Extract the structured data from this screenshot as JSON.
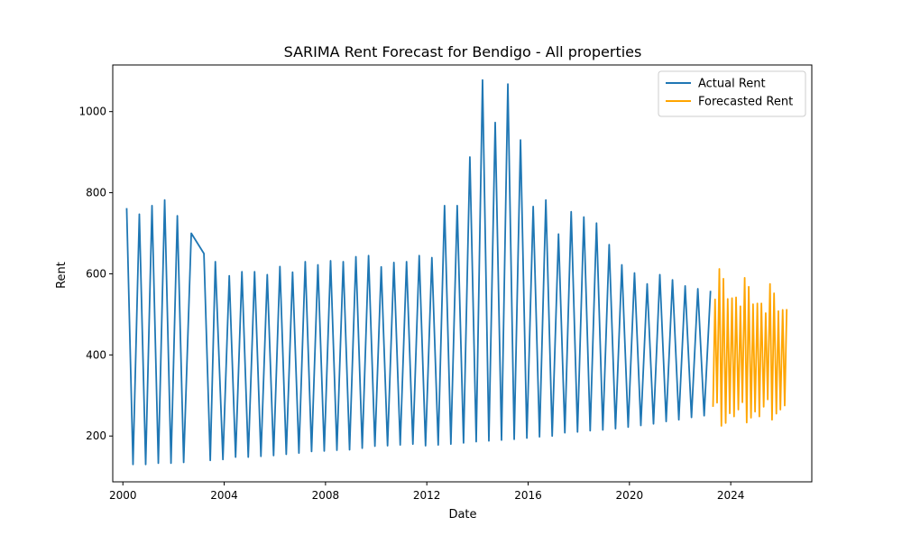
{
  "chart_data": {
    "type": "line",
    "title": "SARIMA Rent Forecast for Bendigo - All properties",
    "xlabel": "Date",
    "ylabel": "Rent",
    "xlim": [
      1999.6,
      2027.2
    ],
    "ylim": [
      87,
      1115
    ],
    "x_ticks": [
      2000,
      2004,
      2008,
      2012,
      2016,
      2020,
      2024
    ],
    "y_ticks": [
      200,
      400,
      600,
      800,
      1000
    ],
    "legend_position": "top-right",
    "grid": false,
    "series": [
      {
        "name": "Actual Rent",
        "color": "#1f77b4",
        "points": [
          [
            2000.15,
            762
          ],
          [
            2000.4,
            130
          ],
          [
            2000.65,
            747
          ],
          [
            2000.9,
            130
          ],
          [
            2001.15,
            768
          ],
          [
            2001.4,
            133
          ],
          [
            2001.65,
            782
          ],
          [
            2001.9,
            133
          ],
          [
            2002.15,
            743
          ],
          [
            2002.4,
            135
          ],
          [
            2002.7,
            700
          ],
          [
            2003.2,
            650
          ],
          [
            2003.45,
            140
          ],
          [
            2003.65,
            630
          ],
          [
            2003.95,
            142
          ],
          [
            2004.2,
            595
          ],
          [
            2004.45,
            148
          ],
          [
            2004.7,
            605
          ],
          [
            2004.95,
            148
          ],
          [
            2005.2,
            605
          ],
          [
            2005.45,
            150
          ],
          [
            2005.7,
            598
          ],
          [
            2005.95,
            152
          ],
          [
            2006.2,
            618
          ],
          [
            2006.45,
            155
          ],
          [
            2006.7,
            604
          ],
          [
            2006.95,
            158
          ],
          [
            2007.2,
            630
          ],
          [
            2007.45,
            162
          ],
          [
            2007.7,
            622
          ],
          [
            2007.95,
            163
          ],
          [
            2008.2,
            632
          ],
          [
            2008.45,
            165
          ],
          [
            2008.7,
            630
          ],
          [
            2008.95,
            166
          ],
          [
            2009.2,
            642
          ],
          [
            2009.45,
            170
          ],
          [
            2009.7,
            645
          ],
          [
            2009.95,
            175
          ],
          [
            2010.2,
            617
          ],
          [
            2010.45,
            176
          ],
          [
            2010.7,
            628
          ],
          [
            2010.95,
            178
          ],
          [
            2011.2,
            630
          ],
          [
            2011.45,
            180
          ],
          [
            2011.7,
            645
          ],
          [
            2011.95,
            176
          ],
          [
            2012.2,
            640
          ],
          [
            2012.45,
            178
          ],
          [
            2012.7,
            768
          ],
          [
            2012.95,
            180
          ],
          [
            2013.2,
            768
          ],
          [
            2013.45,
            183
          ],
          [
            2013.7,
            888
          ],
          [
            2013.95,
            186
          ],
          [
            2014.2,
            1078
          ],
          [
            2014.45,
            188
          ],
          [
            2014.7,
            973
          ],
          [
            2014.95,
            190
          ],
          [
            2015.2,
            1068
          ],
          [
            2015.45,
            192
          ],
          [
            2015.7,
            930
          ],
          [
            2015.95,
            195
          ],
          [
            2016.2,
            766
          ],
          [
            2016.45,
            198
          ],
          [
            2016.7,
            782
          ],
          [
            2016.95,
            200
          ],
          [
            2017.2,
            698
          ],
          [
            2017.45,
            208
          ],
          [
            2017.7,
            753
          ],
          [
            2017.95,
            210
          ],
          [
            2018.2,
            740
          ],
          [
            2018.45,
            213
          ],
          [
            2018.7,
            725
          ],
          [
            2018.95,
            215
          ],
          [
            2019.2,
            672
          ],
          [
            2019.45,
            218
          ],
          [
            2019.7,
            622
          ],
          [
            2019.95,
            222
          ],
          [
            2020.2,
            602
          ],
          [
            2020.45,
            226
          ],
          [
            2020.7,
            575
          ],
          [
            2020.95,
            230
          ],
          [
            2021.2,
            598
          ],
          [
            2021.45,
            236
          ],
          [
            2021.7,
            585
          ],
          [
            2021.95,
            240
          ],
          [
            2022.2,
            570
          ],
          [
            2022.45,
            246
          ],
          [
            2022.7,
            563
          ],
          [
            2022.95,
            250
          ],
          [
            2023.2,
            558
          ]
        ]
      },
      {
        "name": "Forecasted Rent",
        "color": "#ffa500",
        "points": [
          [
            2023.3,
            272
          ],
          [
            2023.38,
            537
          ],
          [
            2023.46,
            282
          ],
          [
            2023.55,
            612
          ],
          [
            2023.63,
            225
          ],
          [
            2023.71,
            588
          ],
          [
            2023.8,
            232
          ],
          [
            2023.88,
            538
          ],
          [
            2023.96,
            256
          ],
          [
            2024.05,
            540
          ],
          [
            2024.13,
            248
          ],
          [
            2024.21,
            542
          ],
          [
            2024.3,
            265
          ],
          [
            2024.38,
            520
          ],
          [
            2024.46,
            283
          ],
          [
            2024.55,
            590
          ],
          [
            2024.63,
            233
          ],
          [
            2024.71,
            568
          ],
          [
            2024.8,
            245
          ],
          [
            2024.88,
            525
          ],
          [
            2024.96,
            260
          ],
          [
            2025.05,
            527
          ],
          [
            2025.13,
            248
          ],
          [
            2025.21,
            527
          ],
          [
            2025.3,
            272
          ],
          [
            2025.38,
            503
          ],
          [
            2025.46,
            290
          ],
          [
            2025.55,
            575
          ],
          [
            2025.63,
            240
          ],
          [
            2025.71,
            552
          ],
          [
            2025.8,
            255
          ],
          [
            2025.88,
            508
          ],
          [
            2025.96,
            265
          ],
          [
            2026.05,
            511
          ],
          [
            2026.13,
            275
          ],
          [
            2026.21,
            513
          ]
        ]
      }
    ]
  }
}
